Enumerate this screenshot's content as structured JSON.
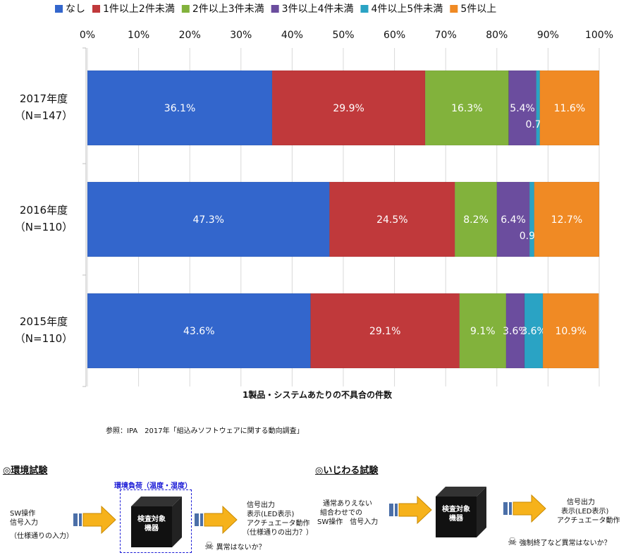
{
  "chart_data": {
    "type": "bar",
    "orientation": "horizontal",
    "stacked": true,
    "xlim": [
      0,
      100
    ],
    "x_ticks": [
      "0%",
      "10%",
      "20%",
      "30%",
      "40%",
      "50%",
      "60%",
      "70%",
      "80%",
      "90%",
      "100%"
    ],
    "categories": [
      "2017年度\n（N=147）",
      "2016年度\n（N=110）",
      "2015年度\n（N=110）"
    ],
    "series": [
      {
        "name": "なし",
        "color": "#3366cc",
        "values": [
          36.1,
          47.3,
          43.6
        ],
        "labels": [
          "36.1%",
          "47.3%",
          "43.6%"
        ]
      },
      {
        "name": "1件以上2件未満",
        "color": "#c0393b",
        "values": [
          29.9,
          24.5,
          29.1
        ],
        "labels": [
          "29.9%",
          "24.5%",
          "29.1%"
        ]
      },
      {
        "name": "2件以上3件未満",
        "color": "#82b23c",
        "values": [
          16.3,
          8.2,
          9.1
        ],
        "labels": [
          "16.3%",
          "8.2%",
          "9.1%"
        ]
      },
      {
        "name": "3件以上4件未満",
        "color": "#6b4d9e",
        "values": [
          5.4,
          6.4,
          3.6
        ],
        "labels": [
          "5.4%",
          "6.4%",
          "3.6%"
        ]
      },
      {
        "name": "4件以上5件未満",
        "color": "#2aa3c4",
        "values": [
          0.7,
          0.9,
          3.6
        ],
        "labels": [
          "0.7%",
          "0.9%",
          "3.6%"
        ]
      },
      {
        "name": "5件以上",
        "color": "#f08a24",
        "values": [
          11.6,
          12.7,
          10.9
        ],
        "labels": [
          "11.6%",
          "12.7%",
          "10.9%"
        ]
      }
    ],
    "xlabel": "1製品・システムあたりの不具合の件数",
    "legend_position": "top",
    "grid": "vertical"
  },
  "note": "参照：IPA　2017年「組込みソフトウェアに関する動向調査」",
  "env_test": {
    "title": "◎環境試験",
    "box_label": "環境負荷（温度・湿度）",
    "input_lines": [
      "SW操作",
      "信号入力",
      "（仕様通りの入力）"
    ],
    "device_lines": [
      "検査対象",
      "機器"
    ],
    "output_lines": [
      "信号出力",
      "表示(LED表示)",
      "アクチュエータ動作",
      "（仕様通りの出力？）"
    ],
    "warning": "異常はないか？"
  },
  "ijiwaru_test": {
    "title": "◎いじわる試験",
    "input_lines": [
      "通常ありえない",
      "組合わせでの",
      "SW操作　信号入力"
    ],
    "device_lines": [
      "検査対象",
      "機器"
    ],
    "output_lines": [
      "信号出力",
      "表示(LED表示)",
      "アクチュエータ動作"
    ],
    "warning": "強制終了など異常はないか？"
  },
  "colors": {
    "accent_dashed": "#1a1ad6",
    "arrow_fill": "#f6b21b",
    "arrow_tail": "#4b6fa8",
    "device": "#111111"
  }
}
